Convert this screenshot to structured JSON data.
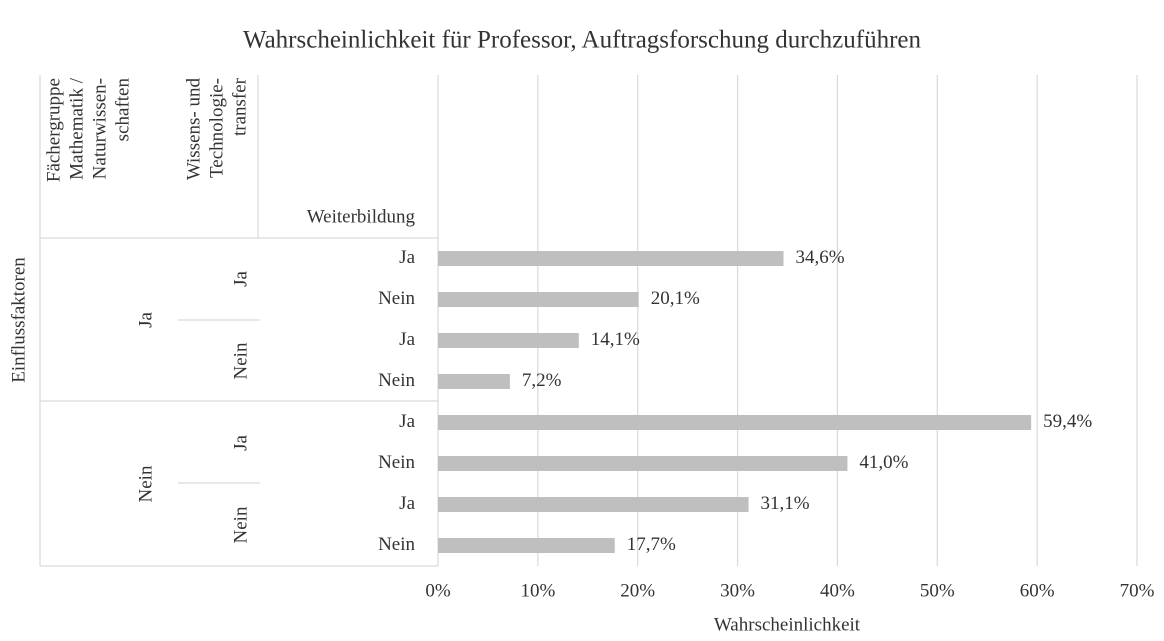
{
  "chart_data": {
    "type": "bar",
    "orientation": "horizontal",
    "title": "Wahrscheinlichkeit für Professor, Auftragsforschung durchzuführen",
    "x_label": "Wahrscheinlichkeit",
    "y_label": "Einflussfaktoren",
    "level_headers": [
      [
        "Fächergruppe",
        "Mathematik /",
        "Naturwissen-",
        "schaften"
      ],
      [
        "Wissens- und",
        "Technologie-",
        "transfer"
      ],
      [
        "Weiterbildung"
      ]
    ],
    "categories": [
      [
        "Ja",
        "Ja",
        "Ja"
      ],
      [
        "Ja",
        "Ja",
        "Nein"
      ],
      [
        "Ja",
        "Nein",
        "Ja"
      ],
      [
        "Ja",
        "Nein",
        "Nein"
      ],
      [
        "Nein",
        "Ja",
        "Ja"
      ],
      [
        "Nein",
        "Ja",
        "Nein"
      ],
      [
        "Nein",
        "Nein",
        "Ja"
      ],
      [
        "Nein",
        "Nein",
        "Nein"
      ]
    ],
    "values": [
      34.6,
      20.1,
      14.1,
      7.2,
      59.4,
      41.0,
      31.1,
      17.7
    ],
    "value_labels": [
      "34,6%",
      "20,1%",
      "14,1%",
      "7,2%",
      "59,4%",
      "41,0%",
      "31,1%",
      "17,7%"
    ],
    "color": "#bfbfbf",
    "xlim": [
      0,
      70
    ],
    "xticks": [
      {
        "value": 0,
        "label": "0%"
      },
      {
        "value": 10,
        "label": "10%"
      },
      {
        "value": 20,
        "label": "20%"
      },
      {
        "value": 30,
        "label": "30%"
      },
      {
        "value": 40,
        "label": "40%"
      },
      {
        "value": 50,
        "label": "50%"
      },
      {
        "value": 60,
        "label": "60%"
      },
      {
        "value": 70,
        "label": "70%"
      }
    ],
    "grid": true
  }
}
